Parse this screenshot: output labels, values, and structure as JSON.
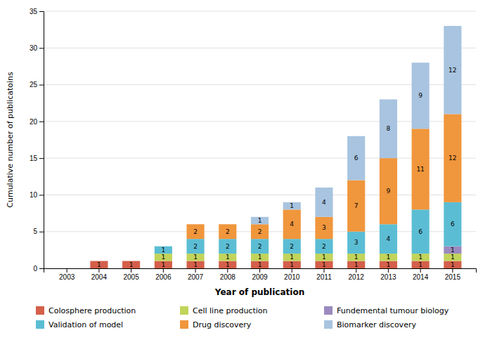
{
  "chart_data": {
    "type": "bar",
    "stacked": true,
    "xlabel": "Year of publication",
    "ylabel": "Cumulative number of publicatoins",
    "categories": [
      "2003",
      "2004",
      "2005",
      "2006",
      "2007",
      "2008",
      "2009",
      "2010",
      "2011",
      "2012",
      "2013",
      "2014",
      "2015"
    ],
    "series": [
      {
        "name": "Colosphere production",
        "color": "#d45f4a",
        "values": [
          0,
          1,
          1,
          1,
          1,
          1,
          1,
          1,
          1,
          1,
          1,
          1,
          1
        ]
      },
      {
        "name": "Cell line production",
        "color": "#c2d45a",
        "values": [
          0,
          0,
          0,
          1,
          1,
          1,
          1,
          1,
          1,
          1,
          1,
          1,
          1
        ]
      },
      {
        "name": "Fundemental tumour biology",
        "color": "#9b8abf",
        "values": [
          0,
          0,
          0,
          0,
          0,
          0,
          0,
          0,
          0,
          0,
          0,
          0,
          1
        ]
      },
      {
        "name": "Validation of model",
        "color": "#5bbdd4",
        "values": [
          0,
          0,
          0,
          1,
          2,
          2,
          2,
          2,
          2,
          3,
          4,
          6,
          6
        ]
      },
      {
        "name": "Drug discovery",
        "color": "#f0963c",
        "values": [
          0,
          0,
          0,
          0,
          2,
          2,
          2,
          4,
          3,
          7,
          9,
          11,
          12
        ]
      },
      {
        "name": "Biomarker discovery",
        "color": "#a8c4e0",
        "values": [
          0,
          0,
          0,
          0,
          0,
          0,
          1,
          1,
          4,
          6,
          8,
          9,
          12
        ]
      }
    ],
    "ylim": [
      0,
      35
    ],
    "yticks": [
      0,
      5,
      10,
      15,
      20,
      25,
      30,
      35
    ],
    "grid": true,
    "legend": "bottom",
    "data_labels": true
  }
}
